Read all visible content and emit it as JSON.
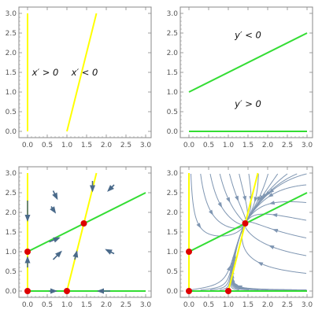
{
  "chart_data": [
    {
      "type": "line",
      "panel": "top-left",
      "xlim": [
        0,
        3
      ],
      "ylim": [
        0,
        3
      ],
      "x_ticks": [
        "0.0",
        "0.5",
        "1.0",
        "1.5",
        "2.0",
        "2.5",
        "3.0"
      ],
      "y_ticks": [
        "0.0",
        "0.5",
        "1.0",
        "1.5",
        "2.0",
        "2.5",
        "3.0"
      ],
      "grid": false,
      "series": [
        {
          "color": "#ffff00",
          "points": [
            [
              0,
              0
            ],
            [
              0,
              3
            ]
          ]
        },
        {
          "color": "#ffff00",
          "points": [
            [
              1,
              0
            ],
            [
              1.75,
              3
            ]
          ]
        }
      ],
      "annotations": [
        {
          "text": "x′ > 0",
          "x": 0.45,
          "y": 1.5
        },
        {
          "text": "x′ < 0",
          "x": 1.45,
          "y": 1.5
        }
      ]
    },
    {
      "type": "line",
      "panel": "top-right",
      "xlim": [
        0,
        3
      ],
      "ylim": [
        0,
        3
      ],
      "x_ticks": [
        "0.0",
        "0.5",
        "1.0",
        "1.5",
        "2.0",
        "2.5",
        "3.0"
      ],
      "y_ticks": [
        "0.0",
        "0.5",
        "1.0",
        "1.5",
        "2.0",
        "2.5",
        "3.0"
      ],
      "grid": false,
      "series": [
        {
          "color": "#33dd33",
          "points": [
            [
              0,
              1
            ],
            [
              3,
              2.5
            ]
          ]
        },
        {
          "color": "#33dd33",
          "points": [
            [
              0,
              0
            ],
            [
              3,
              0
            ]
          ]
        }
      ],
      "annotations": [
        {
          "text": "y′ < 0",
          "x": 1.5,
          "y": 2.45
        },
        {
          "text": "y′ > 0",
          "x": 1.5,
          "y": 0.7
        }
      ]
    },
    {
      "type": "line",
      "panel": "bottom-left",
      "xlim": [
        0,
        3
      ],
      "ylim": [
        0,
        3
      ],
      "x_ticks": [
        "0.0",
        "0.5",
        "1.0",
        "1.5",
        "2.0",
        "2.5",
        "3.0"
      ],
      "y_ticks": [
        "0.0",
        "0.5",
        "1.0",
        "1.5",
        "2.0",
        "2.5",
        "3.0"
      ],
      "grid": false,
      "series": [
        {
          "color": "#ffff00",
          "points": [
            [
              0,
              0
            ],
            [
              0,
              3
            ]
          ]
        },
        {
          "color": "#ffff00",
          "points": [
            [
              1,
              0
            ],
            [
              1.75,
              3
            ]
          ]
        },
        {
          "color": "#33dd33",
          "points": [
            [
              0,
              1
            ],
            [
              3,
              2.5
            ]
          ]
        },
        {
          "color": "#33dd33",
          "points": [
            [
              0,
              0
            ],
            [
              3,
              0
            ]
          ]
        }
      ],
      "equilibria": [
        [
          0,
          0
        ],
        [
          0,
          1
        ],
        [
          1,
          0
        ],
        [
          1.43,
          1.72
        ]
      ],
      "arrows": [
        {
          "from": [
            0,
            2.3
          ],
          "to": [
            0,
            1.8
          ]
        },
        {
          "from": [
            0,
            0.6
          ],
          "to": [
            0,
            0.85
          ]
        },
        {
          "from": [
            0.55,
            0
          ],
          "to": [
            0.72,
            0
          ]
        },
        {
          "from": [
            2.1,
            0
          ],
          "to": [
            1.8,
            0
          ]
        },
        {
          "from": [
            0.65,
            2.55
          ],
          "to": [
            0.75,
            2.35
          ]
        },
        {
          "from": [
            1.65,
            2.8
          ],
          "to": [
            1.65,
            2.55
          ]
        },
        {
          "from": [
            2.2,
            2.7
          ],
          "to": [
            2.05,
            2.55
          ]
        },
        {
          "from": [
            0.55,
            1.25
          ],
          "to": [
            0.8,
            1.35
          ]
        },
        {
          "from": [
            0.65,
            0.8
          ],
          "to": [
            0.85,
            1.0
          ]
        },
        {
          "from": [
            1.2,
            0.8
          ],
          "to": [
            1.25,
            1.0
          ]
        },
        {
          "from": [
            2.2,
            0.95
          ],
          "to": [
            2.0,
            1.05
          ]
        },
        {
          "from": [
            0.6,
            2.15
          ],
          "to": [
            0.7,
            2.0
          ]
        }
      ]
    },
    {
      "type": "line",
      "panel": "bottom-right",
      "xlim": [
        0,
        3
      ],
      "ylim": [
        0,
        3
      ],
      "x_ticks": [
        "0.0",
        "0.5",
        "1.0",
        "1.5",
        "2.0",
        "2.5",
        "3.0"
      ],
      "y_ticks": [
        "0.0",
        "0.5",
        "1.0",
        "1.5",
        "2.0",
        "2.5",
        "3.0"
      ],
      "grid": false,
      "series": [
        {
          "color": "#ffff00",
          "points": [
            [
              0,
              0
            ],
            [
              0,
              3
            ]
          ]
        },
        {
          "color": "#ffff00",
          "points": [
            [
              1,
              0
            ],
            [
              1.75,
              3
            ]
          ]
        },
        {
          "color": "#33dd33",
          "points": [
            [
              0,
              1
            ],
            [
              3,
              2.5
            ]
          ]
        },
        {
          "color": "#33dd33",
          "points": [
            [
              0,
              0
            ],
            [
              3,
              0
            ]
          ]
        }
      ],
      "equilibria": [
        [
          0,
          0
        ],
        [
          0,
          1
        ],
        [
          1,
          0
        ],
        [
          1.43,
          1.72
        ]
      ],
      "streamlines": "stream plot of flow field (steel blue)"
    }
  ],
  "colors": {
    "x_nullcline": "#ffff00",
    "y_nullcline": "#33dd33",
    "equilibrium": "#dd0000",
    "arrow": "#4a6a8a",
    "stream": "#7f96b2",
    "axis": "#888888"
  }
}
